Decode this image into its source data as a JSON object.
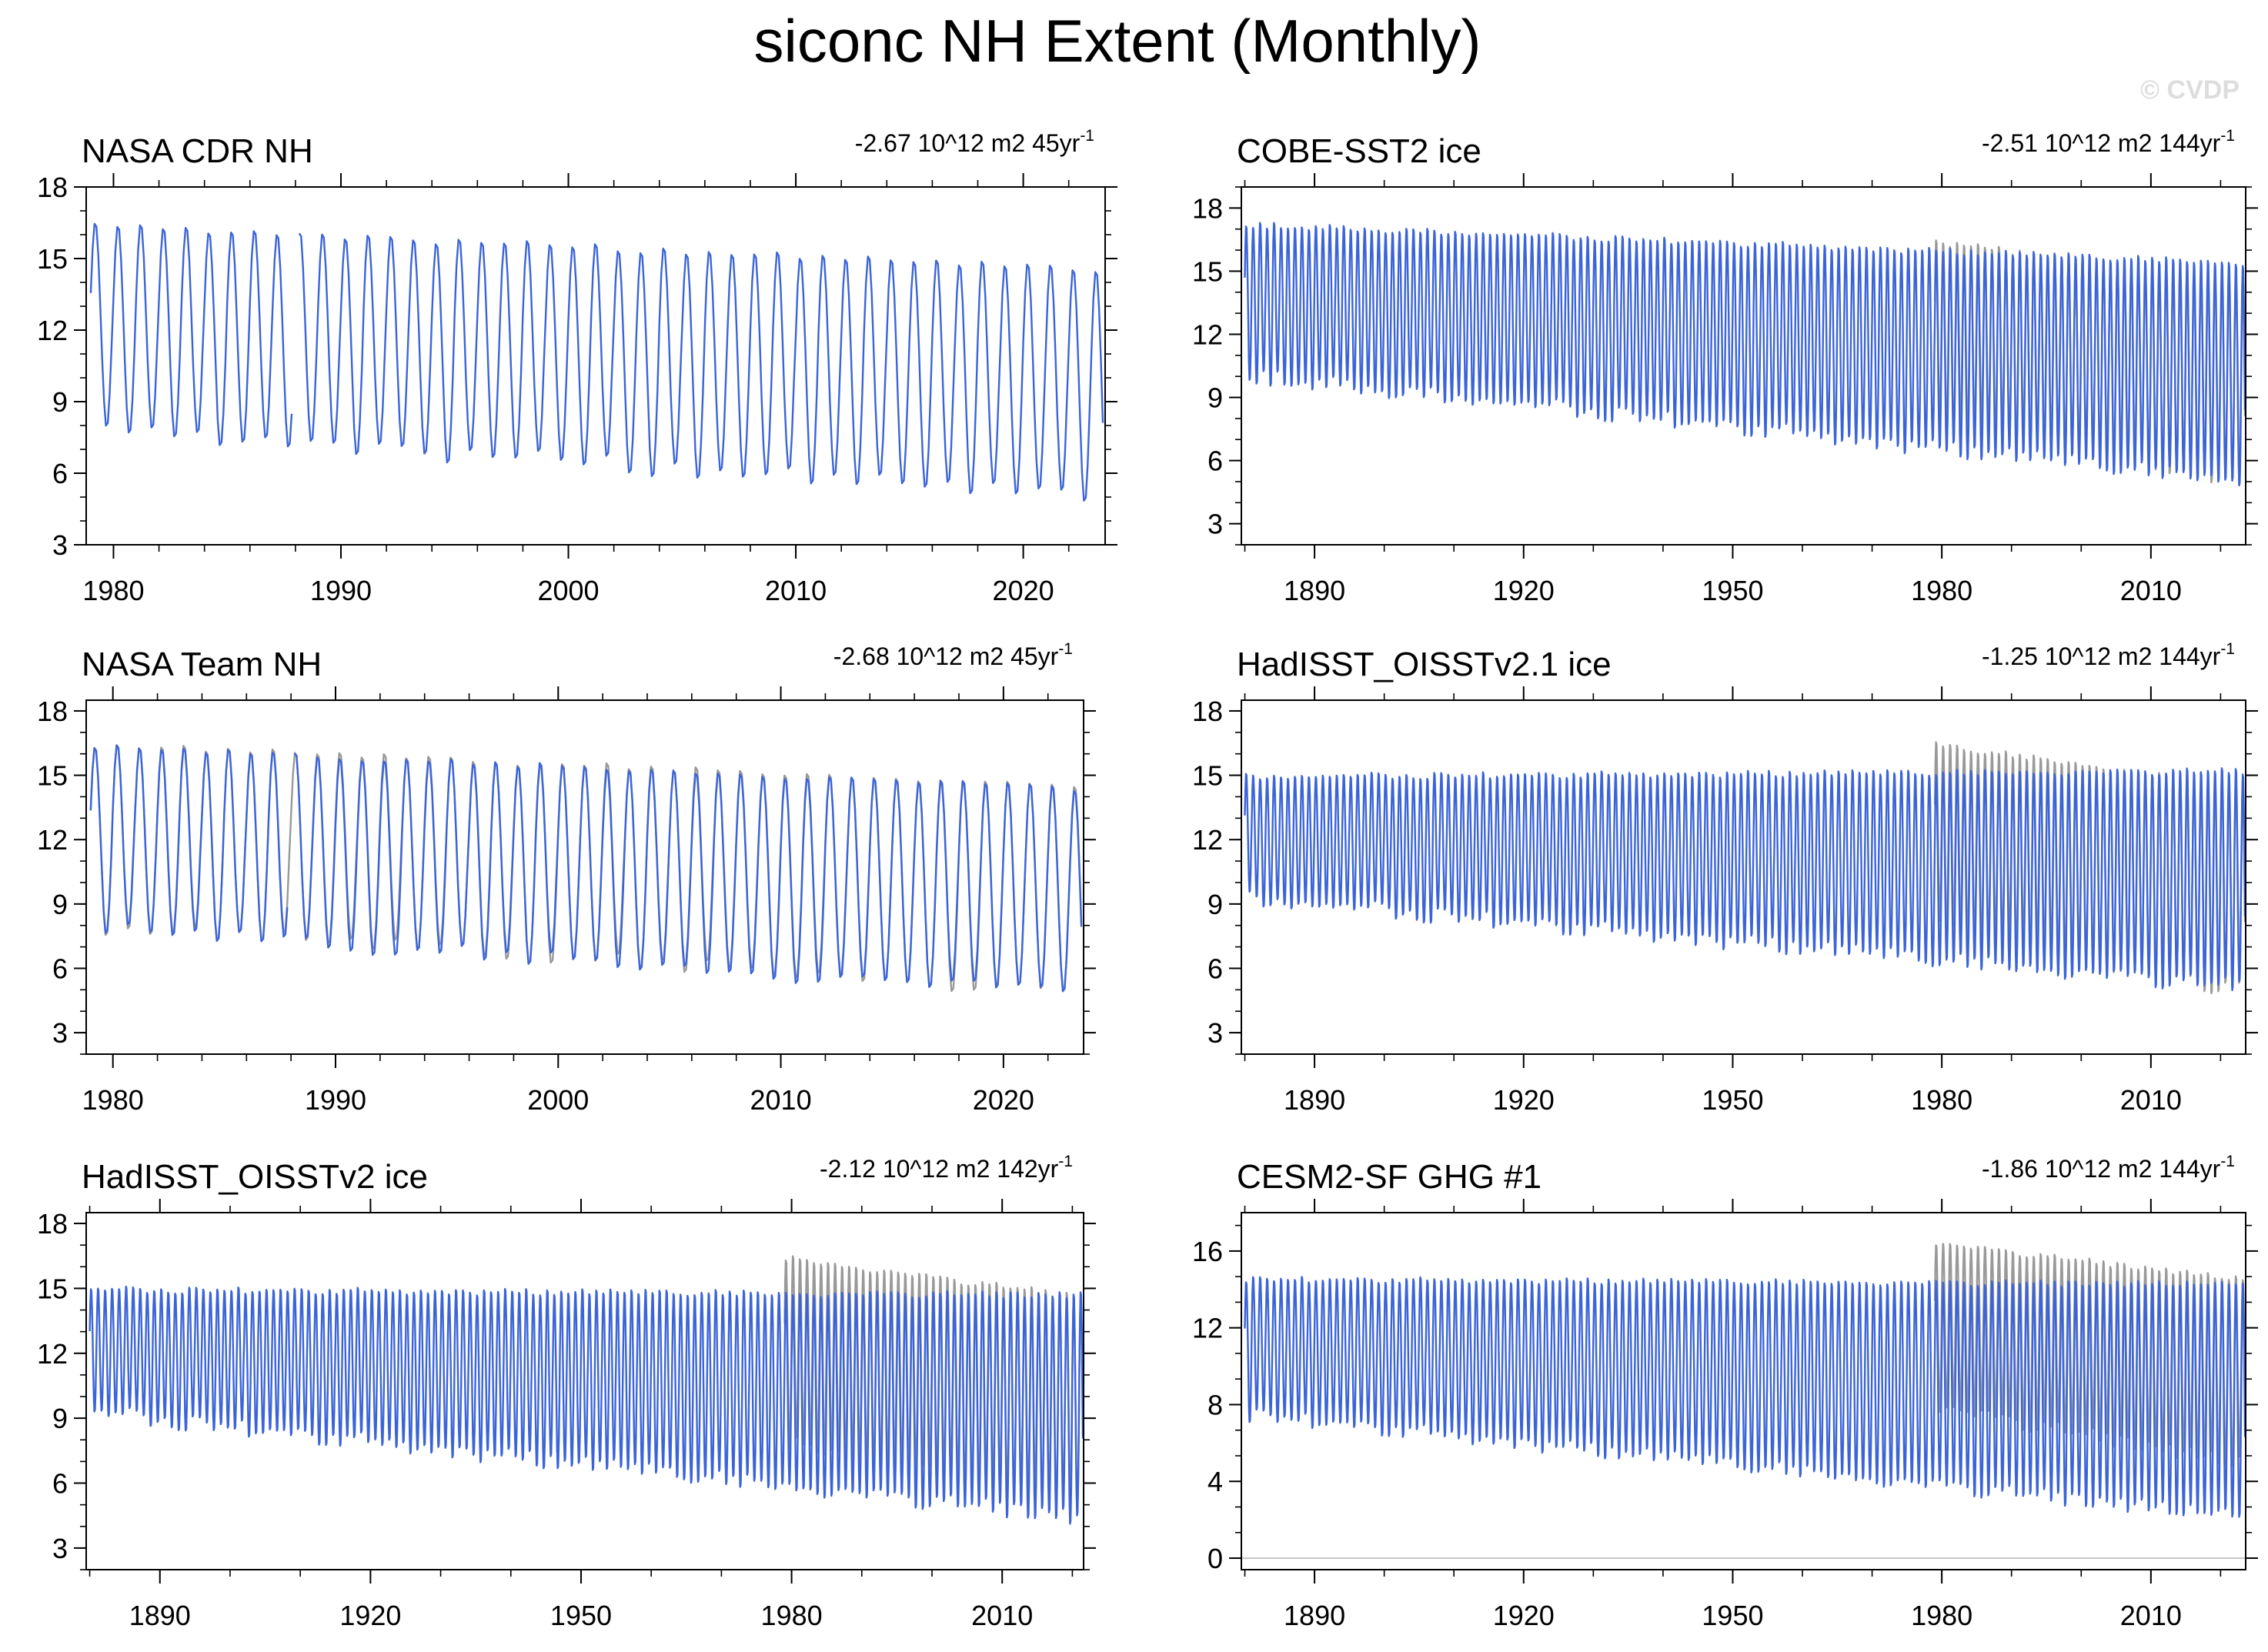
{
  "figure": {
    "title": "siconc NH Extent (Monthly)",
    "watermark": "© CVDP",
    "line_color": "#3b64d8",
    "obs_color": "#999999"
  },
  "chart_data": [
    {
      "type": "line",
      "title": "NASA CDR NH",
      "trend": "-2.67 10^12 m2 45yr",
      "trend_sup": "-1",
      "xlim": [
        1978.8,
        2023.6
      ],
      "ylim": [
        3,
        18
      ],
      "yticks": [
        3,
        6,
        9,
        12,
        15,
        18
      ],
      "xticks": [
        1980,
        1990,
        2000,
        2010,
        2020
      ],
      "series": [
        {
          "name": "NASA CDR NH",
          "role": "main",
          "x_start": 1979,
          "x_end": 2023.5,
          "max_start": 16.5,
          "max_end": 14.6,
          "min_start": 7.8,
          "min_end": 4.8,
          "gap": [
            1987.9,
            1988.1
          ]
        }
      ]
    },
    {
      "type": "line",
      "title": "COBE-SST2 ice",
      "trend": "-2.51 10^12 m2 144yr",
      "trend_sup": "-1",
      "xlim": [
        1879.5,
        2023.6
      ],
      "ylim": [
        2,
        19
      ],
      "yticks": [
        3,
        6,
        9,
        12,
        15,
        18
      ],
      "xticks": [
        1890,
        1920,
        1950,
        1980,
        2010
      ],
      "series": [
        {
          "name": "NASA CDR NH",
          "role": "obs",
          "x_start": 1979,
          "x_end": 2023.5,
          "max_start": 16.5,
          "max_end": 14.6,
          "min_start": 7.8,
          "min_end": 4.8
        },
        {
          "name": "COBE-SST2 ice",
          "role": "main",
          "x_start": 1880,
          "x_end": 2023.5,
          "max_start": 17.3,
          "max_end": 15.5,
          "min_start": 10.0,
          "min_end": 4.9
        }
      ]
    },
    {
      "type": "line",
      "title": "NASA Team NH",
      "trend": "-2.68 10^12 m2 45yr",
      "trend_sup": "-1",
      "xlim": [
        1978.8,
        2023.6
      ],
      "ylim": [
        2,
        18.5
      ],
      "yticks": [
        3,
        6,
        9,
        12,
        15,
        18
      ],
      "xticks": [
        1980,
        1990,
        2000,
        2010,
        2020
      ],
      "series": [
        {
          "name": "NASA CDR NH",
          "role": "obs",
          "x_start": 1979,
          "x_end": 2023.5,
          "max_start": 16.5,
          "max_end": 14.6,
          "min_start": 7.8,
          "min_end": 4.8
        },
        {
          "name": "NASA Team NH",
          "role": "main",
          "x_start": 1979,
          "x_end": 2023.5,
          "max_start": 16.4,
          "max_end": 14.5,
          "min_start": 7.7,
          "min_end": 4.7,
          "gap": [
            1987.9,
            1988.1
          ]
        }
      ]
    },
    {
      "type": "line",
      "title": "HadISST_OISSTv2.1 ice",
      "trend": "-1.25 10^12 m2 144yr",
      "trend_sup": "-1",
      "xlim": [
        1879.5,
        2023.6
      ],
      "ylim": [
        2,
        18.5
      ],
      "yticks": [
        3,
        6,
        9,
        12,
        15,
        18
      ],
      "xticks": [
        1890,
        1920,
        1950,
        1980,
        2010
      ],
      "series": [
        {
          "name": "NASA CDR NH",
          "role": "obs",
          "x_start": 1979,
          "x_end": 2023.5,
          "max_start": 16.5,
          "max_end": 14.6,
          "min_start": 7.8,
          "min_end": 4.8
        },
        {
          "name": "HadISST_OISSTv2.1 ice",
          "role": "main",
          "x_start": 1880,
          "x_end": 2023.5,
          "max_start": 15.0,
          "max_end": 15.3,
          "min_start": 9.2,
          "min_end": 5.0
        }
      ]
    },
    {
      "type": "line",
      "title": "HadISST_OISSTv2 ice",
      "trend": "-2.12 10^12 m2 142yr",
      "trend_sup": "-1",
      "xlim": [
        1879.5,
        2021.6
      ],
      "ylim": [
        2,
        18.5
      ],
      "yticks": [
        3,
        6,
        9,
        12,
        15,
        18
      ],
      "xticks": [
        1890,
        1920,
        1950,
        1980,
        2010
      ],
      "series": [
        {
          "name": "NASA CDR NH",
          "role": "obs",
          "x_start": 1979,
          "x_end": 2021.5,
          "max_start": 16.5,
          "max_end": 14.7,
          "min_start": 7.8,
          "min_end": 4.9
        },
        {
          "name": "HadISST_OISSTv2 ice",
          "role": "main",
          "x_start": 1880,
          "x_end": 2021.5,
          "max_start": 15.0,
          "max_end": 14.8,
          "min_start": 9.2,
          "min_end": 4.3
        }
      ]
    },
    {
      "type": "line",
      "title": "CESM2-SF GHG #1",
      "trend": "-1.86 10^12 m2 144yr",
      "trend_sup": "-1",
      "xlim": [
        1879.5,
        2023.6
      ],
      "ylim": [
        -0.6,
        18
      ],
      "yticks": [
        0,
        4,
        8,
        12,
        16
      ],
      "xticks": [
        1890,
        1920,
        1950,
        1980,
        2010
      ],
      "series": [
        {
          "name": "NASA CDR NH",
          "role": "obs",
          "x_start": 1979,
          "x_end": 2023.5,
          "max_start": 16.5,
          "max_end": 14.6,
          "min_start": 7.8,
          "min_end": 4.8
        },
        {
          "name": "CESM2-SF GHG #1",
          "role": "main",
          "x_start": 1880,
          "x_end": 2023.5,
          "max_start": 14.6,
          "max_end": 14.4,
          "min_start": 7.4,
          "min_end": 2.0
        }
      ]
    }
  ]
}
